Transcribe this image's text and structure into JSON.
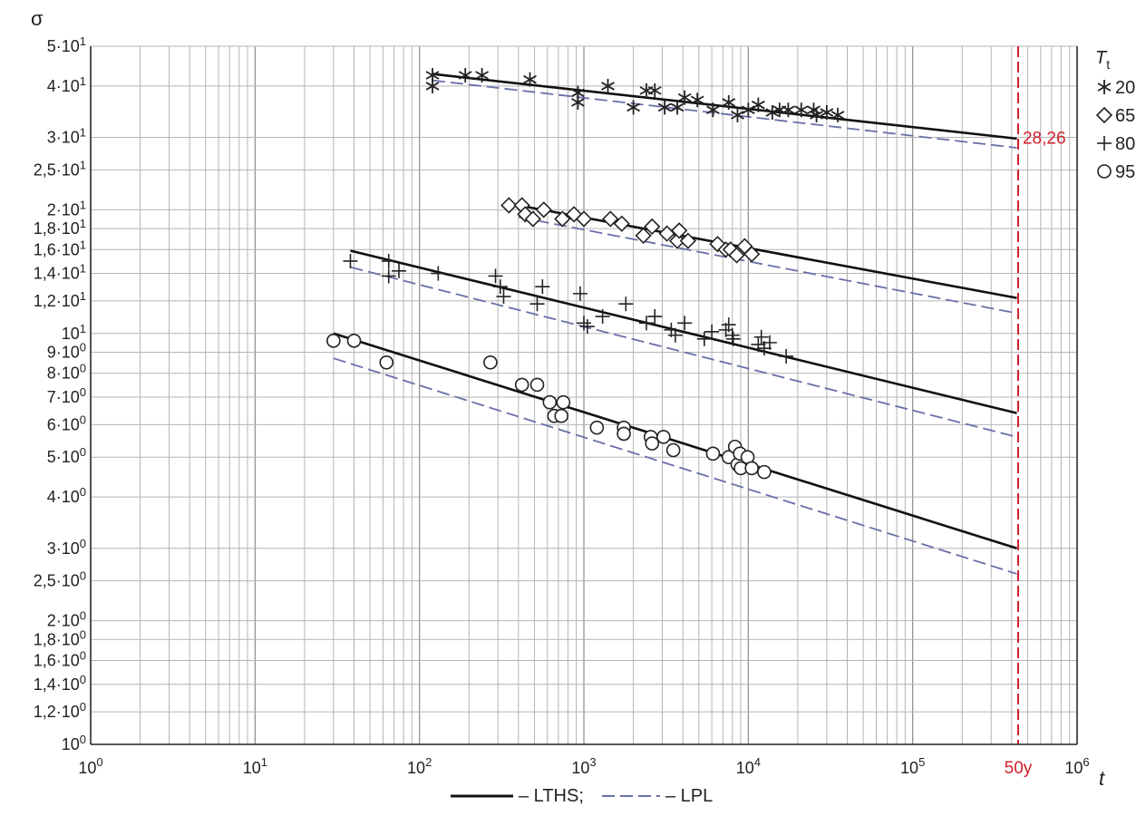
{
  "chart_data": {
    "type": "scatter",
    "title": "",
    "xlabel": "t",
    "ylabel": "σ",
    "xscale": "log",
    "yscale": "log",
    "xlim": [
      1,
      1000000
    ],
    "ylim": [
      1,
      50
    ],
    "grid": true,
    "x_ticks": [
      {
        "base": "10",
        "exp": "0",
        "value": 1
      },
      {
        "base": "10",
        "exp": "1",
        "value": 10
      },
      {
        "base": "10",
        "exp": "2",
        "value": 100
      },
      {
        "base": "10",
        "exp": "3",
        "value": 1000
      },
      {
        "base": "10",
        "exp": "4",
        "value": 10000
      },
      {
        "base": "10",
        "exp": "5",
        "value": 100000
      },
      {
        "base": "10",
        "exp": "6",
        "value": 1000000
      }
    ],
    "y_ticks": [
      {
        "mant": "5·10",
        "exp": "1",
        "value": 50
      },
      {
        "mant": "4·10",
        "exp": "1",
        "value": 40
      },
      {
        "mant": "3·10",
        "exp": "1",
        "value": 30
      },
      {
        "mant": "2,5·10",
        "exp": "1",
        "value": 25
      },
      {
        "mant": "2·10",
        "exp": "1",
        "value": 20
      },
      {
        "mant": "1,8·10",
        "exp": "1",
        "value": 18
      },
      {
        "mant": "1,6·10",
        "exp": "1",
        "value": 16
      },
      {
        "mant": "1,4·10",
        "exp": "1",
        "value": 14
      },
      {
        "mant": "1,2·10",
        "exp": "1",
        "value": 12
      },
      {
        "mant": "10",
        "exp": "1",
        "value": 10
      },
      {
        "mant": "9·10",
        "exp": "0",
        "value": 9
      },
      {
        "mant": "8·10",
        "exp": "0",
        "value": 8
      },
      {
        "mant": "7·10",
        "exp": "0",
        "value": 7
      },
      {
        "mant": "6·10",
        "exp": "0",
        "value": 6
      },
      {
        "mant": "5·10",
        "exp": "0",
        "value": 5
      },
      {
        "mant": "4·10",
        "exp": "0",
        "value": 4
      },
      {
        "mant": "3·10",
        "exp": "0",
        "value": 3
      },
      {
        "mant": "2,5·10",
        "exp": "0",
        "value": 2.5
      },
      {
        "mant": "2·10",
        "exp": "0",
        "value": 2
      },
      {
        "mant": "1,8·10",
        "exp": "0",
        "value": 1.8
      },
      {
        "mant": "1,6·10",
        "exp": "0",
        "value": 1.6
      },
      {
        "mant": "1,4·10",
        "exp": "0",
        "value": 1.4
      },
      {
        "mant": "1,2·10",
        "exp": "0",
        "value": 1.2
      },
      {
        "mant": "10",
        "exp": "0",
        "value": 1
      }
    ],
    "legend_title": "T",
    "legend_title_sub": "t",
    "legend_position": "right",
    "series": [
      {
        "name": "20",
        "marker": "asterisk",
        "points": [
          [
            120,
            42.5
          ],
          [
            120,
            40
          ],
          [
            190,
            42.5
          ],
          [
            240,
            42.5
          ],
          [
            470,
            41.5
          ],
          [
            920,
            38.5
          ],
          [
            920,
            36.5
          ],
          [
            1400,
            40
          ],
          [
            2000,
            35.5
          ],
          [
            2400,
            39
          ],
          [
            2700,
            39
          ],
          [
            3100,
            35.5
          ],
          [
            3700,
            35.5
          ],
          [
            4100,
            37.5
          ],
          [
            4900,
            37
          ],
          [
            6100,
            35
          ],
          [
            7600,
            36.5
          ],
          [
            8600,
            34
          ],
          [
            10000,
            35
          ],
          [
            11500,
            36
          ],
          [
            14000,
            34.5
          ],
          [
            15500,
            35
          ],
          [
            17500,
            35
          ],
          [
            21000,
            35
          ],
          [
            25000,
            35
          ],
          [
            26000,
            34
          ],
          [
            30000,
            34.5
          ],
          [
            35000,
            34
          ]
        ],
        "lths": [
          [
            120,
            42.8
          ],
          [
            430000,
            29.8
          ]
        ],
        "lpl": [
          [
            120,
            41.3
          ],
          [
            430000,
            28.3
          ]
        ]
      },
      {
        "name": "65",
        "marker": "diamond",
        "points": [
          [
            350,
            20.5
          ],
          [
            420,
            20.5
          ],
          [
            440,
            19.5
          ],
          [
            490,
            19
          ],
          [
            570,
            20
          ],
          [
            740,
            19
          ],
          [
            870,
            19.5
          ],
          [
            1000,
            19
          ],
          [
            1450,
            19
          ],
          [
            1700,
            18.5
          ],
          [
            2300,
            17.3
          ],
          [
            2600,
            18.2
          ],
          [
            3200,
            17.5
          ],
          [
            3700,
            16.8
          ],
          [
            3800,
            17.8
          ],
          [
            4300,
            16.8
          ],
          [
            6500,
            16.5
          ],
          [
            7300,
            16
          ],
          [
            7800,
            16
          ],
          [
            8500,
            15.5
          ],
          [
            9500,
            16.3
          ],
          [
            10500,
            15.6
          ]
        ],
        "lths": [
          [
            400,
            20.5
          ],
          [
            430000,
            12.2
          ]
        ],
        "lpl": [
          [
            400,
            19.2
          ],
          [
            430000,
            11.2
          ]
        ]
      },
      {
        "name": "80",
        "marker": "plus",
        "points": [
          [
            38,
            15
          ],
          [
            65,
            15
          ],
          [
            65,
            13.8
          ],
          [
            75,
            14.2
          ],
          [
            130,
            14
          ],
          [
            290,
            13.8
          ],
          [
            310,
            13
          ],
          [
            325,
            12.3
          ],
          [
            520,
            11.8
          ],
          [
            560,
            13
          ],
          [
            950,
            12.5
          ],
          [
            1000,
            10.6
          ],
          [
            1050,
            10.4
          ],
          [
            1300,
            11
          ],
          [
            1800,
            11.8
          ],
          [
            2400,
            10.6
          ],
          [
            2700,
            11
          ],
          [
            3400,
            10.2
          ],
          [
            3600,
            9.9
          ],
          [
            4100,
            10.6
          ],
          [
            5400,
            9.7
          ],
          [
            6000,
            10.1
          ],
          [
            7300,
            10.2
          ],
          [
            7600,
            10.5
          ],
          [
            8000,
            9.9
          ],
          [
            8100,
            9.7
          ],
          [
            11500,
            9.4
          ],
          [
            12000,
            9.8
          ],
          [
            12500,
            9.2
          ],
          [
            13500,
            9.5
          ],
          [
            17000,
            8.8
          ]
        ],
        "lths": [
          [
            38,
            15.9
          ],
          [
            430000,
            6.4
          ]
        ],
        "lpl": [
          [
            38,
            14.5
          ],
          [
            430000,
            5.6
          ]
        ]
      },
      {
        "name": "95",
        "marker": "circle",
        "points": [
          [
            30,
            9.6
          ],
          [
            40,
            9.6
          ],
          [
            63,
            8.5
          ],
          [
            270,
            8.5
          ],
          [
            420,
            7.5
          ],
          [
            520,
            7.5
          ],
          [
            620,
            6.8
          ],
          [
            660,
            6.3
          ],
          [
            730,
            6.3
          ],
          [
            750,
            6.8
          ],
          [
            1200,
            5.9
          ],
          [
            1750,
            5.9
          ],
          [
            1750,
            5.7
          ],
          [
            2550,
            5.6
          ],
          [
            2600,
            5.4
          ],
          [
            3050,
            5.6
          ],
          [
            3500,
            5.2
          ],
          [
            6100,
            5.1
          ],
          [
            7600,
            5
          ],
          [
            8300,
            5.3
          ],
          [
            8600,
            4.8
          ],
          [
            8900,
            5.1
          ],
          [
            9000,
            4.7
          ],
          [
            9900,
            5
          ],
          [
            10500,
            4.7
          ],
          [
            12500,
            4.6
          ]
        ],
        "lths": [
          [
            30,
            10
          ],
          [
            430000,
            3.0
          ]
        ],
        "lpl": [
          [
            30,
            8.7
          ],
          [
            430000,
            2.6
          ]
        ]
      }
    ],
    "reference_line": {
      "x": 438000,
      "label": "50y",
      "value_label": "28,26",
      "color": "#d0202e"
    },
    "colors": {
      "lths": "#111111",
      "lpl": "#6a6fa8",
      "grid": "#b4b4b4",
      "axis": "#222222",
      "reference": "#d0202e"
    },
    "footer_legend": [
      {
        "key": "lths",
        "label": "– LTHS;"
      },
      {
        "key": "lpl",
        "label": "– LPL"
      }
    ]
  }
}
